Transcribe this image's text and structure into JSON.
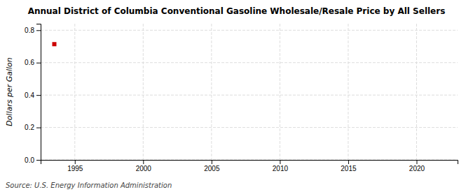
{
  "chart_data": {
    "type": "scatter",
    "title": "Annual District of Columbia Conventional Gasoline Wholesale/Resale Price by All Sellers",
    "ylabel": "Dollars per Gallon",
    "annotations": [
      "Source: U.S. Energy Information Administration"
    ],
    "x": [
      1993.5
    ],
    "values": [
      0.714
    ],
    "color": "#cc0000",
    "marker": "square",
    "xlim": [
      1992.5,
      2023
    ],
    "ylim": [
      0.0,
      0.84
    ],
    "xticks": [
      1995,
      2000,
      2005,
      2010,
      2015,
      2020
    ],
    "yticks": [
      {
        "value": 0.0,
        "label": "0.0"
      },
      0.2,
      0.4,
      0.6,
      0.8
    ],
    "grid": true
  }
}
